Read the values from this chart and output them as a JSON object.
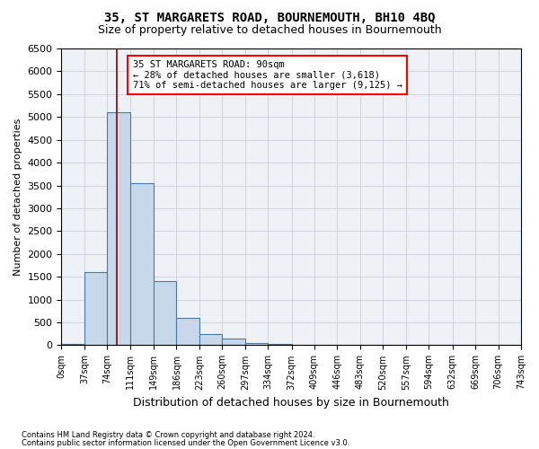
{
  "title1": "35, ST MARGARETS ROAD, BOURNEMOUTH, BH10 4BQ",
  "title2": "Size of property relative to detached houses in Bournemouth",
  "xlabel": "Distribution of detached houses by size in Bournemouth",
  "ylabel": "Number of detached properties",
  "footnote1": "Contains HM Land Registry data © Crown copyright and database right 2024.",
  "footnote2": "Contains public sector information licensed under the Open Government Licence v3.0.",
  "bar_color": "#c8d8eb",
  "bar_edge_color": "#4a7aaa",
  "grid_color": "#c8d0da",
  "property_line_x": 90,
  "annotation_text": "35 ST MARGARETS ROAD: 90sqm\n← 28% of detached houses are smaller (3,618)\n71% of semi-detached houses are larger (9,125) →",
  "annotation_box_color": "white",
  "annotation_border_color": "red",
  "vline_color": "#8b0000",
  "bin_edges": [
    0,
    37,
    74,
    111,
    149,
    186,
    223,
    260,
    297,
    334,
    372,
    409,
    446,
    483,
    520,
    557,
    594,
    632,
    669,
    706,
    743
  ],
  "bin_heights": [
    30,
    1600,
    5100,
    3550,
    1400,
    590,
    250,
    140,
    50,
    25,
    15,
    10,
    5,
    5,
    5,
    5,
    5,
    5,
    5,
    5
  ],
  "ylim": [
    0,
    6500
  ],
  "yticks": [
    0,
    500,
    1000,
    1500,
    2000,
    2500,
    3000,
    3500,
    4000,
    4500,
    5000,
    5500,
    6000,
    6500
  ],
  "xtick_labels": [
    "0sqm",
    "37sqm",
    "74sqm",
    "111sqm",
    "149sqm",
    "186sqm",
    "223sqm",
    "260sqm",
    "297sqm",
    "334sqm",
    "372sqm",
    "409sqm",
    "446sqm",
    "483sqm",
    "520sqm",
    "557sqm",
    "594sqm",
    "632sqm",
    "669sqm",
    "706sqm",
    "743sqm"
  ],
  "background_color": "#eef2f7",
  "title1_fontsize": 10,
  "title2_fontsize": 9,
  "ylabel_fontsize": 8,
  "xlabel_fontsize": 9,
  "ytick_fontsize": 8,
  "xtick_fontsize": 7,
  "annot_fontsize": 7.5
}
